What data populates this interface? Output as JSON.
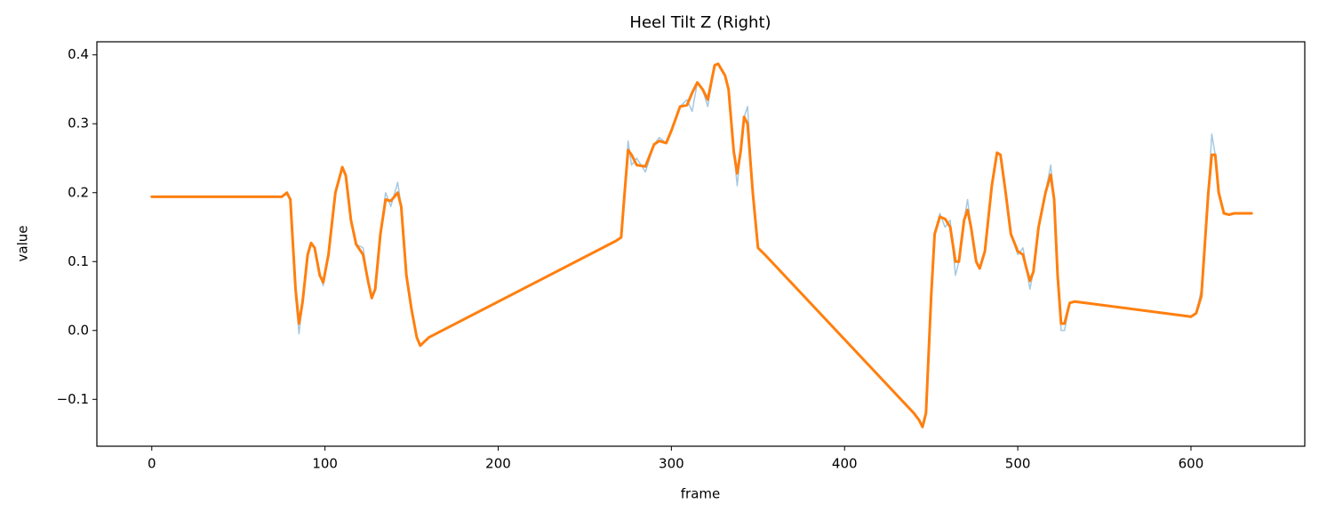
{
  "chart_data": {
    "type": "line",
    "title": "Heel Tilt Z (Right)",
    "x_label": "frame",
    "y_label": "value",
    "x": [
      0,
      75,
      78,
      80,
      83,
      85,
      87,
      90,
      92,
      94,
      97,
      99,
      102,
      106,
      110,
      112,
      115,
      118,
      122,
      125,
      127,
      129,
      132,
      135,
      138,
      142,
      144,
      147,
      150,
      153,
      155,
      160,
      268,
      271,
      273,
      275,
      277,
      280,
      285,
      290,
      293,
      297,
      300,
      305,
      309,
      312,
      315,
      318,
      321,
      325,
      327,
      331,
      333,
      336,
      338,
      340,
      342,
      344,
      347,
      350,
      354,
      440,
      443,
      445,
      447,
      450,
      452,
      455,
      458,
      461,
      464,
      466,
      469,
      471,
      473,
      476,
      478,
      481,
      485,
      488,
      490,
      493,
      496,
      500,
      503,
      505,
      507,
      509,
      512,
      516,
      519,
      521,
      523,
      525,
      527,
      530,
      533,
      600,
      603,
      606,
      610,
      612,
      614,
      616,
      619,
      622,
      625,
      635
    ],
    "series": [
      {
        "color": "#1f77b4",
        "opacity": 0.4,
        "width": 1.5,
        "values": [
          0.194,
          0.194,
          0.2,
          0.19,
          0.05,
          -0.005,
          0.04,
          0.11,
          0.127,
          0.12,
          0.08,
          0.065,
          0.11,
          0.2,
          0.237,
          0.225,
          0.16,
          0.125,
          0.12,
          0.07,
          0.047,
          0.06,
          0.14,
          0.2,
          0.18,
          0.215,
          0.18,
          0.08,
          0.03,
          -0.01,
          -0.022,
          -0.01,
          0.13,
          0.135,
          0.2,
          0.275,
          0.24,
          0.25,
          0.23,
          0.27,
          0.28,
          0.272,
          0.29,
          0.325,
          0.335,
          0.318,
          0.36,
          0.35,
          0.325,
          0.385,
          0.387,
          0.37,
          0.35,
          0.26,
          0.21,
          0.26,
          0.31,
          0.325,
          0.2,
          0.12,
          0.11,
          -0.12,
          -0.13,
          -0.14,
          -0.12,
          0.05,
          0.14,
          0.17,
          0.15,
          0.16,
          0.08,
          0.1,
          0.16,
          0.19,
          0.15,
          0.1,
          0.09,
          0.115,
          0.21,
          0.258,
          0.255,
          0.2,
          0.14,
          0.11,
          0.12,
          0.09,
          0.06,
          0.085,
          0.15,
          0.2,
          0.24,
          0.19,
          0.08,
          0.0,
          0.0,
          0.04,
          0.042,
          0.02,
          0.025,
          0.06,
          0.2,
          0.285,
          0.255,
          0.2,
          0.17,
          0.168,
          0.17,
          0.17
        ]
      },
      {
        "color": "#ff7f0e",
        "opacity": 1,
        "width": 3,
        "values": [
          0.194,
          0.194,
          0.2,
          0.19,
          0.06,
          0.01,
          0.04,
          0.11,
          0.127,
          0.12,
          0.08,
          0.07,
          0.11,
          0.2,
          0.237,
          0.225,
          0.16,
          0.125,
          0.11,
          0.07,
          0.047,
          0.06,
          0.14,
          0.19,
          0.188,
          0.2,
          0.18,
          0.08,
          0.03,
          -0.01,
          -0.022,
          -0.01,
          0.13,
          0.135,
          0.2,
          0.262,
          0.255,
          0.24,
          0.238,
          0.27,
          0.275,
          0.272,
          0.29,
          0.325,
          0.327,
          0.345,
          0.36,
          0.35,
          0.335,
          0.385,
          0.387,
          0.37,
          0.35,
          0.26,
          0.228,
          0.26,
          0.31,
          0.3,
          0.2,
          0.12,
          0.11,
          -0.12,
          -0.13,
          -0.14,
          -0.12,
          0.05,
          0.14,
          0.165,
          0.162,
          0.15,
          0.1,
          0.1,
          0.16,
          0.175,
          0.15,
          0.1,
          0.09,
          0.115,
          0.21,
          0.258,
          0.255,
          0.2,
          0.14,
          0.115,
          0.11,
          0.09,
          0.072,
          0.085,
          0.15,
          0.2,
          0.226,
          0.19,
          0.08,
          0.01,
          0.01,
          0.04,
          0.042,
          0.02,
          0.025,
          0.05,
          0.2,
          0.255,
          0.255,
          0.2,
          0.17,
          0.168,
          0.17,
          0.17
        ]
      }
    ],
    "xlim": [
      -31.7,
      665.7
    ],
    "ylim": [
      -0.168,
      0.419
    ],
    "xticks": [
      0,
      100,
      200,
      300,
      400,
      500,
      600
    ],
    "yticks": [
      {
        "value": -0.1,
        "label": "−0.1"
      },
      {
        "value": 0,
        "label": "0.0"
      },
      0.1,
      0.2,
      0.3,
      0.4
    ]
  }
}
